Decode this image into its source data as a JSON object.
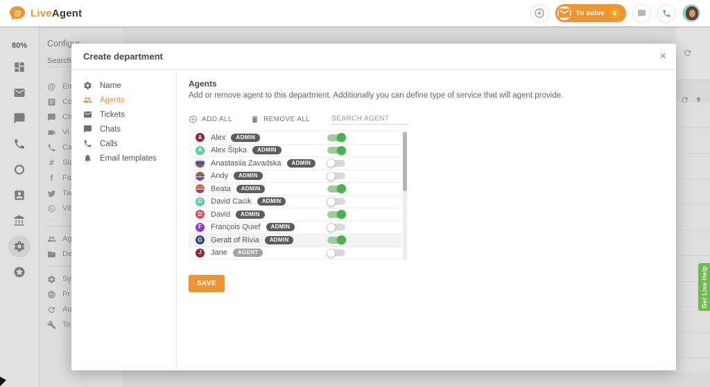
{
  "header": {
    "logo_live": "Live",
    "logo_agent": "Agent",
    "to_solve_label": "To solve",
    "to_solve_count": "6",
    "accent_orange": "#ee9433"
  },
  "rail": {
    "usage_percent": "80%",
    "icons": [
      {
        "icon": "grid"
      },
      {
        "icon": "envelope"
      },
      {
        "icon": "chat"
      },
      {
        "icon": "phone"
      },
      {
        "icon": "ring"
      },
      {
        "icon": "contact-card"
      },
      {
        "icon": "bank"
      },
      {
        "icon": "gear",
        "active": true
      },
      {
        "icon": "star-circle"
      }
    ]
  },
  "config": {
    "title": "Configur",
    "search_placeholder": "Search ...",
    "groups": [
      {
        "items": [
          {
            "icon": "at",
            "label": "Em"
          },
          {
            "icon": "card",
            "label": "Co"
          },
          {
            "icon": "chat",
            "label": "Ch"
          },
          {
            "icon": "video",
            "label": "Vi"
          },
          {
            "icon": "phone",
            "label": "Ca"
          },
          {
            "icon": "slack",
            "label": "Sla"
          },
          {
            "icon": "facebook",
            "label": "Fa"
          },
          {
            "icon": "twitter",
            "label": "Tw"
          },
          {
            "icon": "viber",
            "label": "Vib"
          }
        ]
      },
      {
        "items": [
          {
            "icon": "people",
            "label": "Ag"
          },
          {
            "icon": "folder",
            "label": "De"
          }
        ]
      },
      {
        "items": [
          {
            "icon": "gear",
            "label": "Sy"
          },
          {
            "icon": "globe",
            "label": "Pr"
          },
          {
            "icon": "refresh",
            "label": "Au"
          },
          {
            "icon": "wrench",
            "label": "To"
          }
        ]
      }
    ]
  },
  "background_right": {
    "icons": [
      {
        "icon": "refresh"
      },
      {
        "icon": "refresh"
      },
      {
        "icon": "upload"
      }
    ]
  },
  "modal": {
    "title": "Create department",
    "close_glyph": "×",
    "nav": [
      {
        "icon": "gear",
        "label": "Name"
      },
      {
        "icon": "people",
        "label": "Agents",
        "active": true
      },
      {
        "icon": "envelope",
        "label": "Tickets"
      },
      {
        "icon": "chat",
        "label": "Chats"
      },
      {
        "icon": "phone",
        "label": "Calls"
      },
      {
        "icon": "bell",
        "label": "Email templates"
      }
    ],
    "content": {
      "heading": "Agents",
      "description": "Add or remove agent to this department. Additionally you can define type of service that will agent provide.",
      "add_all_label": "ADD ALL",
      "remove_all_label": "REMOVE ALL",
      "search_placeholder": "SEARCH AGENT",
      "save_label": "SAVE",
      "toggle_on_color": "#4caf50",
      "badge_admin_color": "#5d5d5d",
      "badge_agent_color": "#a2a2a2",
      "agents": [
        {
          "name": "Alex",
          "initial": "A",
          "avatar_bg": "#8f2936",
          "role": "ADMIN",
          "enabled": true
        },
        {
          "name": "Alex Šipka",
          "initial": "A",
          "avatar_bg": "#57d0a8",
          "role": "ADMIN",
          "enabled": true
        },
        {
          "name": "Anastasiia Zavadska",
          "initial": "",
          "avatar_bg": "linear-gradient(180deg,#e8e8e8 0%,#e8e8e8 28%,#3b5aa5 28%,#3b5aa5 62%,#cf3a3a 62%,#cf3a3a 100%)",
          "role": "ADMIN",
          "enabled": false
        },
        {
          "name": "Andy",
          "initial": "",
          "avatar_bg": "linear-gradient(180deg,#8a6a4e 0%,#8a6a4e 52%,#e8e8e8 52%,#e8e8e8 62%,#3b5aa5 62%,#3b5aa5 80%,#cf3a3a 80%,#cf3a3a 100%)",
          "role": "ADMIN",
          "enabled": false
        },
        {
          "name": "Beata",
          "initial": "",
          "avatar_bg": "linear-gradient(180deg,#c9764a 0%,#c9764a 52%,#e8e8e8 52%,#e8e8e8 62%,#3b5aa5 62%,#3b5aa5 80%,#cf3a3a 80%,#cf3a3a 100%)",
          "role": "ADMIN",
          "enabled": true
        },
        {
          "name": "David Cacik",
          "initial": "D",
          "avatar_bg": "#57d0a8",
          "role": "ADMIN",
          "enabled": false
        },
        {
          "name": "David",
          "initial": "D",
          "avatar_bg": "#e14b57",
          "role": "ADMIN",
          "enabled": true
        },
        {
          "name": "François Quief",
          "initial": "F",
          "avatar_bg": "#9137d2",
          "role": "ADMIN",
          "enabled": false
        },
        {
          "name": "Geralt of Rivia",
          "initial": "G",
          "avatar_bg": "#2c4a8f",
          "role": "ADMIN",
          "enabled": true,
          "highlighted": true
        },
        {
          "name": "Jane",
          "initial": "J",
          "avatar_bg": "#8f2936",
          "role": "AGENT",
          "enabled": false
        }
      ]
    }
  },
  "live_help": {
    "label": "Get Live Help",
    "color": "#6abf4b"
  }
}
